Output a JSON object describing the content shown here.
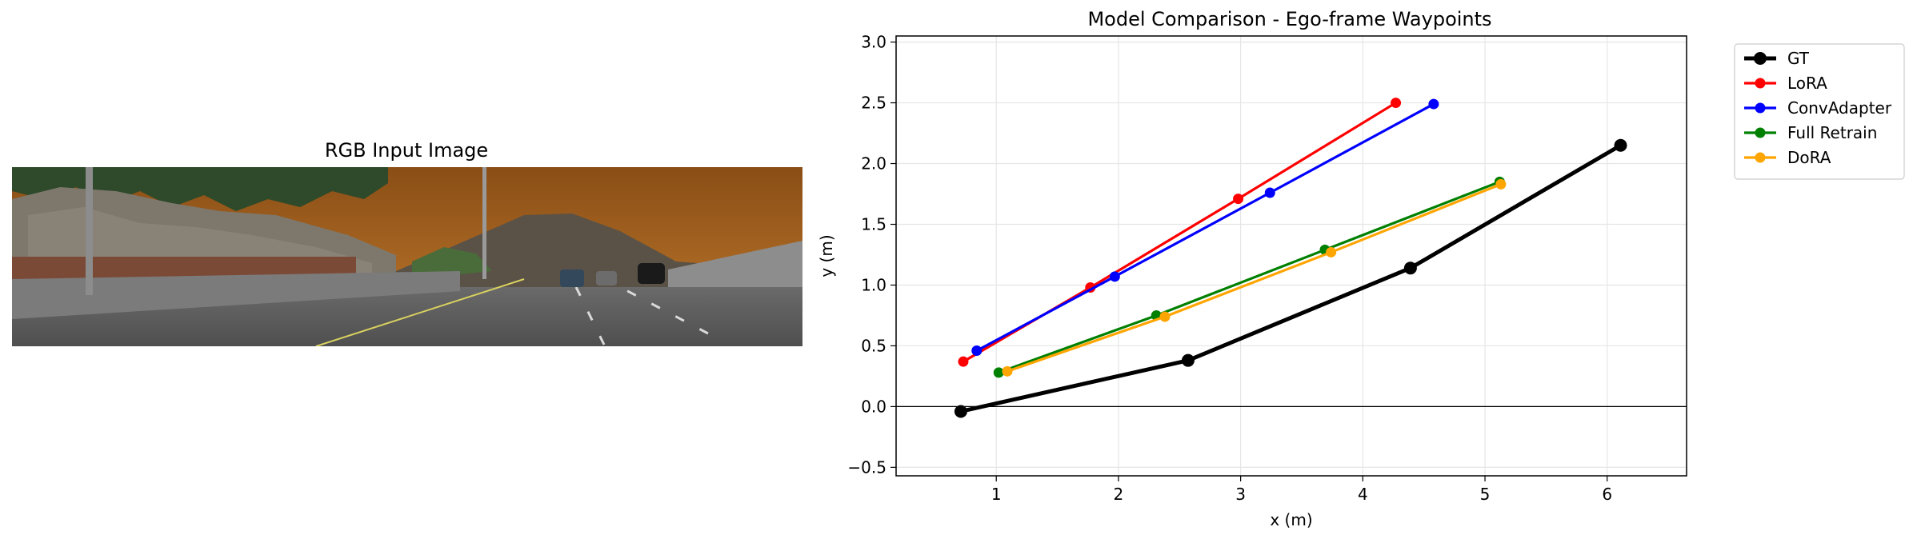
{
  "panels": {
    "image_title": "RGB Input Image",
    "image_description": ""
  },
  "chart_data": {
    "type": "line",
    "title": "Model Comparison - Ego-frame Waypoints",
    "xlabel": "x (m)",
    "ylabel": "y (m)",
    "xlim": [
      0.18,
      6.65
    ],
    "ylim": [
      -0.57,
      3.05
    ],
    "xticks": [
      1,
      2,
      3,
      4,
      5,
      6
    ],
    "yticks": [
      -0.5,
      0.0,
      0.5,
      1.0,
      1.5,
      2.0,
      2.5,
      3.0
    ],
    "xtick_labels": [
      "1",
      "2",
      "3",
      "4",
      "5",
      "6"
    ],
    "ytick_labels": [
      "−0.5",
      "0.0",
      "0.5",
      "1.0",
      "1.5",
      "2.0",
      "2.5",
      "3.0"
    ],
    "grid": true,
    "zero_line": 0.0,
    "legend_position": "outside-top-right",
    "series": [
      {
        "name": "GT",
        "color": "#000000",
        "emphasis": true,
        "x": [
          0.71,
          2.57,
          4.39,
          6.11
        ],
        "y": [
          -0.04,
          0.38,
          1.14,
          2.15
        ]
      },
      {
        "name": "LoRA",
        "color": "#ff0000",
        "emphasis": false,
        "x": [
          0.73,
          1.77,
          2.98,
          4.27
        ],
        "y": [
          0.37,
          0.98,
          1.71,
          2.5
        ]
      },
      {
        "name": "ConvAdapter",
        "color": "#0000ff",
        "emphasis": false,
        "x": [
          0.84,
          1.97,
          3.24,
          4.58
        ],
        "y": [
          0.46,
          1.07,
          1.76,
          2.49
        ]
      },
      {
        "name": "Full Retrain",
        "color": "#008000",
        "emphasis": false,
        "x": [
          1.02,
          2.31,
          3.69,
          5.12
        ],
        "y": [
          0.28,
          0.75,
          1.29,
          1.85
        ]
      },
      {
        "name": "DoRA",
        "color": "#ffa500",
        "emphasis": false,
        "x": [
          1.09,
          2.38,
          3.74,
          5.13
        ],
        "y": [
          0.29,
          0.74,
          1.27,
          1.83
        ]
      }
    ]
  }
}
